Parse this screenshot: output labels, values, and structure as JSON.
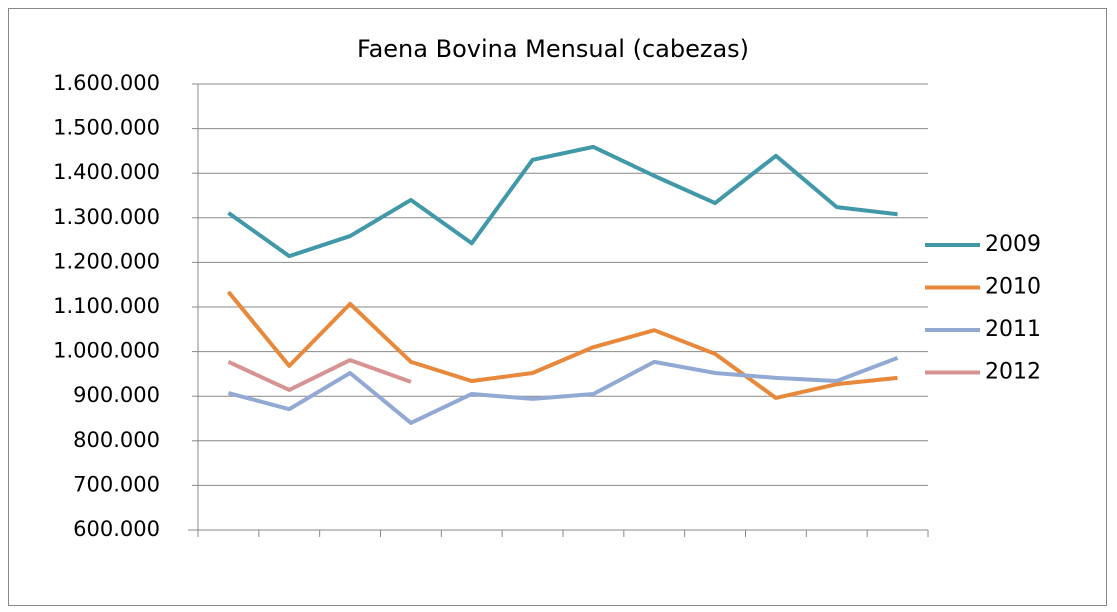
{
  "chart_data": {
    "type": "line",
    "title": "Faena Bovina Mensual (cabezas)",
    "categories": [
      null,
      null,
      null,
      null,
      null,
      null,
      null,
      null,
      null,
      null,
      null,
      null
    ],
    "series": [
      {
        "name": "2009",
        "color": "#4198a8",
        "values": [
          1311000,
          1214000,
          1259000,
          1340000,
          1243000,
          1430000,
          1459000,
          1394000,
          1333000,
          1439000,
          1324000,
          1308000
        ]
      },
      {
        "name": "2010",
        "color": "#e8883a",
        "values": [
          1134000,
          968000,
          1107000,
          977000,
          934000,
          952000,
          1010000,
          1048000,
          995000,
          896000,
          927000,
          941000
        ]
      },
      {
        "name": "2011",
        "color": "#92a9d3",
        "values": [
          907000,
          871000,
          952000,
          840000,
          905000,
          894000,
          905000,
          977000,
          952000,
          941000,
          934000,
          986000
        ]
      },
      {
        "name": "2012",
        "color": "#d79392",
        "values": [
          977000,
          914000,
          981000,
          932000,
          null,
          null,
          null,
          null,
          null,
          null,
          null,
          null
        ]
      }
    ],
    "ylim": [
      600000,
      1600000
    ],
    "yticks": [
      {
        "value": 600000,
        "label": "600.000"
      },
      {
        "value": 700000,
        "label": "700.000"
      },
      {
        "value": 800000,
        "label": "800.000"
      },
      {
        "value": 900000,
        "label": "900.000"
      },
      {
        "value": 1000000,
        "label": "1.000.000"
      },
      {
        "value": 1100000,
        "label": "1.100.000"
      },
      {
        "value": 1200000,
        "label": "1.200.000"
      },
      {
        "value": 1300000,
        "label": "1.300.000"
      },
      {
        "value": 1400000,
        "label": "1.400.000"
      },
      {
        "value": 1500000,
        "label": "1.500.000"
      },
      {
        "value": 1600000,
        "label": "1.600.000"
      }
    ],
    "grid": true,
    "legend": "right"
  }
}
